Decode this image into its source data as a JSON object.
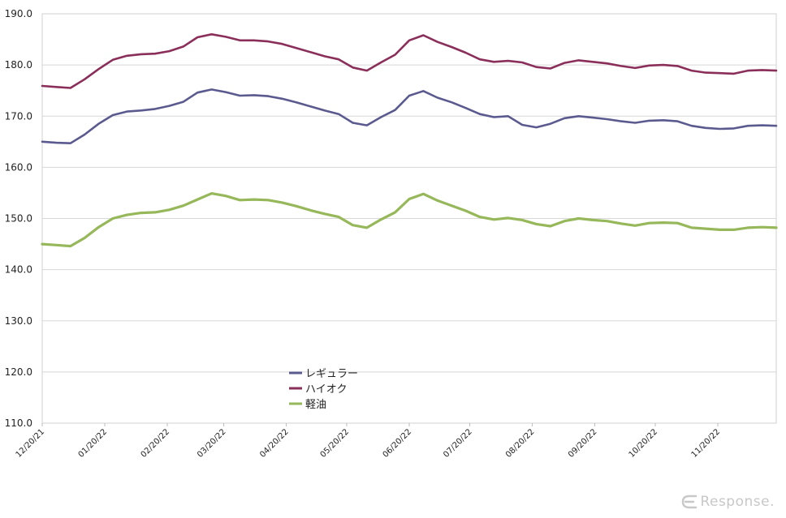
{
  "chart_data": {
    "type": "line",
    "title": "",
    "xlabel": "",
    "ylabel": "",
    "ylim": [
      110,
      190
    ],
    "ytick_step": 10,
    "grid": true,
    "legend_position": "lower-center",
    "x_tick_labels": [
      "12/20/21",
      "01/20/22",
      "02/20/22",
      "03/20/22",
      "04/20/22",
      "05/20/22",
      "06/20/22",
      "07/20/22",
      "08/20/22",
      "09/20/22",
      "10/20/22",
      "11/20/22"
    ],
    "x_tick_index": [
      0,
      4.43,
      8.86,
      12.86,
      17.29,
      21.57,
      26.0,
      30.29,
      34.71,
      39.14,
      43.43,
      47.86
    ],
    "series": [
      {
        "name": "レギュラー",
        "color": "#5b5a8f",
        "values": [
          165.0,
          164.8,
          164.7,
          166.4,
          168.5,
          170.2,
          170.9,
          171.1,
          171.4,
          172.0,
          172.8,
          174.6,
          175.2,
          174.7,
          174.0,
          174.1,
          173.9,
          173.4,
          172.7,
          171.9,
          171.1,
          170.4,
          168.7,
          168.2,
          169.8,
          171.2,
          174.0,
          174.9,
          173.6,
          172.7,
          171.6,
          170.4,
          169.8,
          170.0,
          168.3,
          167.8,
          168.5,
          169.6,
          170.0,
          169.7,
          169.4,
          169.0,
          168.7,
          169.1,
          169.2,
          169.0,
          168.1,
          167.7,
          167.5,
          167.6,
          168.1,
          168.2,
          168.1
        ]
      },
      {
        "name": "ハイオク",
        "color": "#8a2e5a",
        "values": [
          175.9,
          175.7,
          175.5,
          177.2,
          179.2,
          181.0,
          181.8,
          182.1,
          182.2,
          182.7,
          183.6,
          185.4,
          186.0,
          185.5,
          184.8,
          184.8,
          184.6,
          184.1,
          183.3,
          182.5,
          181.7,
          181.1,
          179.5,
          178.9,
          180.5,
          182.0,
          184.8,
          185.8,
          184.5,
          183.5,
          182.4,
          181.1,
          180.6,
          180.8,
          180.5,
          179.6,
          179.3,
          180.4,
          180.9,
          180.6,
          180.3,
          179.8,
          179.4,
          179.9,
          180.0,
          179.8,
          178.9,
          178.5,
          178.4,
          178.3,
          178.9,
          179.0,
          178.9
        ]
      },
      {
        "name": "軽油",
        "color": "#96b85a",
        "values": [
          145.0,
          144.8,
          144.6,
          146.2,
          148.3,
          150.0,
          150.7,
          151.1,
          151.2,
          151.7,
          152.5,
          153.7,
          154.9,
          154.4,
          153.6,
          153.7,
          153.6,
          153.1,
          152.4,
          151.6,
          150.9,
          150.3,
          148.7,
          148.2,
          149.8,
          151.2,
          153.8,
          154.8,
          153.5,
          152.5,
          151.5,
          150.3,
          149.8,
          150.1,
          149.7,
          148.9,
          148.5,
          149.5,
          150.0,
          149.7,
          149.5,
          149.0,
          148.6,
          149.1,
          149.2,
          149.1,
          148.2,
          148.0,
          147.8,
          147.8,
          148.2,
          148.3,
          148.2
        ]
      }
    ]
  },
  "watermark": {
    "text": "Response."
  }
}
